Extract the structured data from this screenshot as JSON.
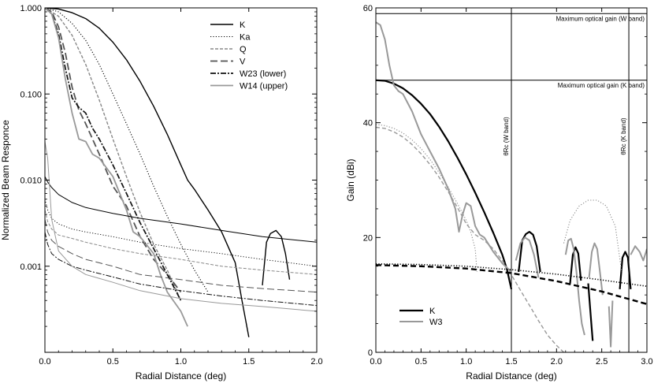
{
  "chart_data": [
    {
      "type": "line",
      "xlabel": "Radial Distance (deg)",
      "ylabel": "Normalized Beam Responce",
      "xlim": [
        0.0,
        2.0
      ],
      "ylim": [
        0.0001,
        1.0
      ],
      "yscale": "log",
      "xticks": [
        "0.0",
        "0.5",
        "1.0",
        "1.5",
        "2.0"
      ],
      "yticks": [
        {
          "value": 1.0,
          "label": "1.000"
        },
        {
          "value": 0.1,
          "label": "0.100"
        },
        {
          "value": 0.01,
          "label": "0.010"
        },
        {
          "value": 0.001,
          "label": "0.001"
        }
      ],
      "legend_position": "top-right",
      "series": [
        {
          "name": "K",
          "color": "#000000",
          "dash": "",
          "width": 1.4,
          "x": [
            0.0,
            0.1,
            0.2,
            0.3,
            0.4,
            0.5,
            0.6,
            0.7,
            0.8,
            0.9,
            1.0,
            1.05,
            1.1,
            1.2,
            1.3,
            1.4,
            1.45,
            1.5
          ],
          "y": [
            1.0,
            0.97,
            0.88,
            0.75,
            0.58,
            0.4,
            0.25,
            0.14,
            0.072,
            0.034,
            0.015,
            0.01,
            0.0078,
            0.0045,
            0.0025,
            0.0011,
            0.0004,
            0.00015
          ]
        },
        {
          "name": "K",
          "color": "#000000",
          "dash": "",
          "width": 1.4,
          "x": [
            1.6,
            1.63,
            1.66,
            1.7,
            1.74,
            1.77,
            1.8
          ],
          "y": [
            0.0006,
            0.0019,
            0.0024,
            0.0026,
            0.0022,
            0.0014,
            0.0007
          ]
        },
        {
          "name": "Ka",
          "color": "#000000",
          "dash": "1.2 2.2",
          "width": 1.1,
          "x": [
            0.0,
            0.1,
            0.2,
            0.3,
            0.4,
            0.5,
            0.6,
            0.7,
            0.8,
            0.9,
            1.0,
            1.1,
            1.2
          ],
          "y": [
            1.0,
            0.9,
            0.66,
            0.42,
            0.22,
            0.1,
            0.045,
            0.02,
            0.0085,
            0.0038,
            0.0018,
            0.0009,
            0.0005
          ]
        },
        {
          "name": "Q",
          "color": "#888888",
          "dash": "4 2",
          "width": 1.4,
          "x": [
            0.0,
            0.1,
            0.2,
            0.3,
            0.4,
            0.5,
            0.6,
            0.7,
            0.8,
            0.9,
            1.0
          ],
          "y": [
            1.0,
            0.8,
            0.48,
            0.22,
            0.085,
            0.03,
            0.011,
            0.0042,
            0.0018,
            0.0009,
            0.0004
          ]
        },
        {
          "name": "V",
          "color": "#555555",
          "dash": "9 4",
          "width": 1.8,
          "x": [
            0.0,
            0.05,
            0.1,
            0.15,
            0.2,
            0.25,
            0.3,
            0.4,
            0.5,
            0.6,
            0.7,
            0.8,
            0.9,
            1.0
          ],
          "y": [
            1.0,
            0.9,
            0.6,
            0.3,
            0.12,
            0.065,
            0.045,
            0.02,
            0.0085,
            0.005,
            0.0022,
            0.0012,
            0.0008,
            0.0005
          ]
        },
        {
          "name": "W23 (lower)",
          "color": "#111111",
          "dash": "7 2 2 2",
          "width": 1.7,
          "x": [
            0.0,
            0.05,
            0.1,
            0.15,
            0.2,
            0.25,
            0.3,
            0.35,
            0.4,
            0.5,
            0.6,
            0.7,
            0.8,
            0.9,
            1.0
          ],
          "y": [
            1.0,
            0.85,
            0.5,
            0.2,
            0.09,
            0.07,
            0.06,
            0.04,
            0.03,
            0.015,
            0.007,
            0.0032,
            0.0016,
            0.0008,
            0.0004
          ]
        },
        {
          "name": "W14 (upper)",
          "color": "#999999",
          "dash": "",
          "width": 1.8,
          "x": [
            0.0,
            0.05,
            0.1,
            0.15,
            0.2,
            0.25,
            0.3,
            0.35,
            0.4,
            0.5,
            0.6,
            0.65,
            0.7,
            0.8,
            0.85,
            0.9,
            1.0,
            1.05
          ],
          "y": [
            1.0,
            0.85,
            0.45,
            0.15,
            0.06,
            0.03,
            0.028,
            0.02,
            0.018,
            0.011,
            0.0045,
            0.0025,
            0.0022,
            0.0014,
            0.0008,
            0.0005,
            0.0003,
            0.0002
          ]
        },
        {
          "name": "",
          "color": "#000000",
          "dash": "",
          "width": 1.0,
          "x": [
            0.0,
            0.02,
            0.05,
            0.1,
            0.2,
            0.3,
            0.5,
            0.7,
            1.0,
            1.3,
            1.6,
            2.0
          ],
          "y": [
            0.011,
            0.0095,
            0.0082,
            0.0068,
            0.0055,
            0.0048,
            0.0041,
            0.0036,
            0.0031,
            0.0026,
            0.0022,
            0.0019
          ]
        },
        {
          "name": "",
          "color": "#000000",
          "dash": "1.2 2.2",
          "width": 0.9,
          "x": [
            0.0,
            0.02,
            0.05,
            0.1,
            0.2,
            0.3,
            0.5,
            0.7,
            1.0,
            1.3,
            1.6,
            2.0
          ],
          "y": [
            0.006,
            0.0045,
            0.0036,
            0.0031,
            0.0027,
            0.0025,
            0.0022,
            0.0019,
            0.0016,
            0.0014,
            0.0012,
            0.001
          ]
        },
        {
          "name": "",
          "color": "#888888",
          "dash": "4 2",
          "width": 1.0,
          "x": [
            0.0,
            0.02,
            0.05,
            0.1,
            0.2,
            0.3,
            0.5,
            0.7,
            1.0,
            1.3,
            1.6,
            2.0
          ],
          "y": [
            0.0045,
            0.0033,
            0.0027,
            0.0023,
            0.0021,
            0.0019,
            0.0016,
            0.0014,
            0.0012,
            0.001,
            0.0009,
            0.0008
          ]
        },
        {
          "name": "",
          "color": "#555555",
          "dash": "9 4",
          "width": 1.0,
          "x": [
            0.0,
            0.02,
            0.05,
            0.1,
            0.2,
            0.3,
            0.5,
            0.7,
            1.0,
            1.3,
            1.6,
            2.0
          ],
          "y": [
            0.0035,
            0.0025,
            0.002,
            0.0017,
            0.0014,
            0.0012,
            0.001,
            0.0008,
            0.0007,
            0.0006,
            0.00055,
            0.0005
          ]
        },
        {
          "name": "",
          "color": "#111111",
          "dash": "7 2 2 2",
          "width": 1.0,
          "x": [
            0.0,
            0.02,
            0.05,
            0.1,
            0.2,
            0.3,
            0.5,
            0.7,
            1.0,
            1.3,
            1.6,
            2.0
          ],
          "y": [
            0.0025,
            0.0018,
            0.0014,
            0.0012,
            0.001,
            0.0009,
            0.00075,
            0.00062,
            0.00052,
            0.00045,
            0.0004,
            0.00035
          ]
        },
        {
          "name": "",
          "color": "#999999",
          "dash": "",
          "width": 1.0,
          "x": [
            0.0,
            0.02,
            0.05,
            0.1,
            0.2,
            0.3,
            0.5,
            0.7,
            1.0,
            1.3,
            1.6,
            2.0
          ],
          "y": [
            0.028,
            0.018,
            0.0035,
            0.0015,
            0.001,
            0.0008,
            0.00065,
            0.00052,
            0.00042,
            0.00037,
            0.00034,
            0.0003
          ]
        }
      ],
      "legend": [
        {
          "label": "K",
          "color": "#000000",
          "dash": "",
          "width": 1.4
        },
        {
          "label": "Ka",
          "color": "#000000",
          "dash": "1.2 2.2",
          "width": 1.1
        },
        {
          "label": "Q",
          "color": "#888888",
          "dash": "4 2",
          "width": 1.4
        },
        {
          "label": "V",
          "color": "#555555",
          "dash": "9 4",
          "width": 1.8
        },
        {
          "label": "W23 (lower)",
          "color": "#111111",
          "dash": "7 2 2 2",
          "width": 1.7
        },
        {
          "label": "W14 (upper)",
          "color": "#999999",
          "dash": "",
          "width": 1.8
        }
      ]
    },
    {
      "type": "line",
      "xlabel": "Radial Distance (deg)",
      "ylabel": "Gain (dBi)",
      "xlim": [
        0.0,
        3.0
      ],
      "ylim": [
        0,
        60
      ],
      "yscale": "linear",
      "xticks": [
        "0.0",
        "0.5",
        "1.0",
        "1.5",
        "2.0",
        "2.5",
        "3.0"
      ],
      "yticks": [
        {
          "value": 0,
          "label": "0"
        },
        {
          "value": 20,
          "label": "20"
        },
        {
          "value": 40,
          "label": "40"
        },
        {
          "value": 60,
          "label": "60"
        }
      ],
      "legend_position": "bottom-left",
      "hlines": [
        {
          "y": 59,
          "label": "Maximum optical gain (W band)"
        },
        {
          "y": 47.4,
          "label": "Maximum optical gain (K band)"
        }
      ],
      "vlines": [
        {
          "x": 1.5,
          "label": "θRc (W band)"
        },
        {
          "x": 2.8,
          "label": "θRc (K band)"
        }
      ],
      "series": [
        {
          "name": "K",
          "color": "#000000",
          "dash": "",
          "width": 2.2,
          "x": [
            0.0,
            0.1,
            0.2,
            0.3,
            0.4,
            0.5,
            0.6,
            0.7,
            0.8,
            0.9,
            1.0,
            1.1,
            1.2,
            1.3,
            1.4,
            1.45,
            1.5
          ],
          "y": [
            47.4,
            47.3,
            46.8,
            46.0,
            44.8,
            43.3,
            41.5,
            39.3,
            36.8,
            34.0,
            31.0,
            27.8,
            24.4,
            20.8,
            17.0,
            14.5,
            11.0
          ]
        },
        {
          "name": "K",
          "color": "#000000",
          "dash": "",
          "width": 2.2,
          "x": [
            1.58,
            1.62,
            1.66,
            1.7,
            1.74,
            1.78,
            1.82
          ],
          "y": [
            14.0,
            19.5,
            20.6,
            21.0,
            20.5,
            18.5,
            14.0
          ]
        },
        {
          "name": "K",
          "color": "#000000",
          "dash": "",
          "width": 2.2,
          "x": [
            2.15,
            2.18,
            2.21,
            2.24,
            2.27
          ],
          "y": [
            12.0,
            17.0,
            18.3,
            17.2,
            12.5
          ]
        },
        {
          "name": "K",
          "color": "#000000",
          "dash": "",
          "width": 2.2,
          "x": [
            2.35,
            2.38,
            2.4
          ],
          "y": [
            12.0,
            6.0,
            2.0
          ]
        },
        {
          "name": "K",
          "color": "#000000",
          "dash": "",
          "width": 2.2,
          "x": [
            2.7,
            2.73,
            2.76,
            2.79,
            2.82
          ],
          "y": [
            11.0,
            16.5,
            17.5,
            16.5,
            11.0
          ]
        },
        {
          "name": "W3",
          "color": "#999999",
          "dash": "",
          "width": 2.0,
          "x": [
            0.0,
            0.05,
            0.1,
            0.15,
            0.2,
            0.25,
            0.3,
            0.4,
            0.5,
            0.6,
            0.7,
            0.8,
            0.88,
            0.92,
            0.96,
            1.0,
            1.05,
            1.1,
            1.15,
            1.2,
            1.3,
            1.4,
            1.5
          ],
          "y": [
            57.5,
            57.0,
            54.5,
            50.0,
            46.5,
            45.5,
            45.0,
            42.0,
            38.0,
            35.0,
            32.0,
            28.5,
            25.0,
            21.0,
            24.0,
            26.0,
            25.5,
            22.0,
            20.5,
            20.0,
            17.5,
            15.5,
            14.0
          ]
        },
        {
          "name": "W3",
          "color": "#999999",
          "dash": "",
          "width": 2.0,
          "x": [
            1.55,
            1.6,
            1.65,
            1.7,
            1.75,
            1.8
          ],
          "y": [
            16.0,
            19.0,
            20.0,
            19.5,
            17.0,
            13.0
          ]
        },
        {
          "name": "W3",
          "color": "#999999",
          "dash": "",
          "width": 2.0,
          "x": [
            2.1,
            2.13,
            2.16,
            2.19,
            2.22,
            2.25,
            2.28,
            2.31
          ],
          "y": [
            17.0,
            19.5,
            19.8,
            18.0,
            14.0,
            9.0,
            5.0,
            3.0
          ]
        },
        {
          "name": "W3",
          "color": "#999999",
          "dash": "",
          "width": 2.0,
          "x": [
            2.36,
            2.39,
            2.42,
            2.45,
            2.48,
            2.51
          ],
          "y": [
            13.0,
            17.5,
            19.0,
            18.0,
            14.0,
            10.0
          ]
        },
        {
          "name": "W3",
          "color": "#999999",
          "dash": "",
          "width": 2.0,
          "x": [
            2.82,
            2.87,
            2.92,
            2.96,
            3.0
          ],
          "y": [
            17.0,
            18.5,
            17.5,
            16.0,
            18.0
          ]
        },
        {
          "name": "",
          "color": "#999999",
          "dash": "",
          "width": 2.0,
          "x": [
            2.58,
            2.6,
            2.62
          ],
          "y": [
            8.0,
            1.0,
            9.0
          ]
        },
        {
          "name": "",
          "color": "#888888",
          "dash": "1.2 2.2",
          "width": 1.1,
          "x": [
            0.0,
            0.1,
            0.2,
            0.3,
            0.4,
            0.5,
            0.6,
            0.7,
            0.8,
            0.9,
            1.0,
            1.05,
            1.1,
            1.12
          ],
          "y": [
            39.7,
            39.5,
            39.0,
            38.2,
            37.0,
            35.5,
            33.6,
            31.3,
            28.8,
            26.0,
            23.0,
            21.0,
            18.0,
            14.0
          ]
        },
        {
          "name": "",
          "color": "#888888",
          "dash": "1.2 2.2",
          "width": 1.1,
          "x": [
            2.08,
            2.15,
            2.25,
            2.35,
            2.45,
            2.55,
            2.65,
            2.72
          ],
          "y": [
            19.0,
            23.0,
            25.5,
            26.5,
            26.5,
            25.5,
            22.0,
            14.0
          ]
        },
        {
          "name": "",
          "color": "#999999",
          "dash": "5 3",
          "width": 1.4,
          "x": [
            0.0,
            0.1,
            0.2,
            0.3,
            0.4,
            0.5,
            0.6,
            0.7,
            0.8,
            0.9,
            1.0,
            1.1,
            1.2,
            1.3,
            1.4,
            1.5,
            1.6,
            1.7,
            1.8,
            1.9,
            2.0,
            2.08
          ],
          "y": [
            39.2,
            39.0,
            38.4,
            37.5,
            36.2,
            34.6,
            32.7,
            30.5,
            28.0,
            25.3,
            22.4,
            20.5,
            19.5,
            18.0,
            16.0,
            13.5,
            10.8,
            8.2,
            5.5,
            3.0,
            1.2,
            0.0
          ]
        },
        {
          "name": "",
          "color": "#000000",
          "dash": "1.2 2.2",
          "width": 1.6,
          "x": [
            0.0,
            0.5,
            1.0,
            1.5,
            2.0,
            2.5,
            3.0
          ],
          "y": [
            15.4,
            15.3,
            15.0,
            14.4,
            13.6,
            12.6,
            11.5
          ]
        },
        {
          "name": "",
          "color": "#000000",
          "dash": "7 4",
          "width": 2.4,
          "x": [
            0.0,
            0.5,
            1.0,
            1.5,
            2.0,
            2.5,
            3.0
          ],
          "y": [
            15.2,
            15.0,
            14.6,
            13.8,
            12.4,
            10.6,
            8.4
          ]
        }
      ],
      "legend": [
        {
          "label": "K",
          "color": "#000000",
          "dash": "",
          "width": 2.2
        },
        {
          "label": "W3",
          "color": "#999999",
          "dash": "",
          "width": 2.0
        }
      ]
    }
  ]
}
